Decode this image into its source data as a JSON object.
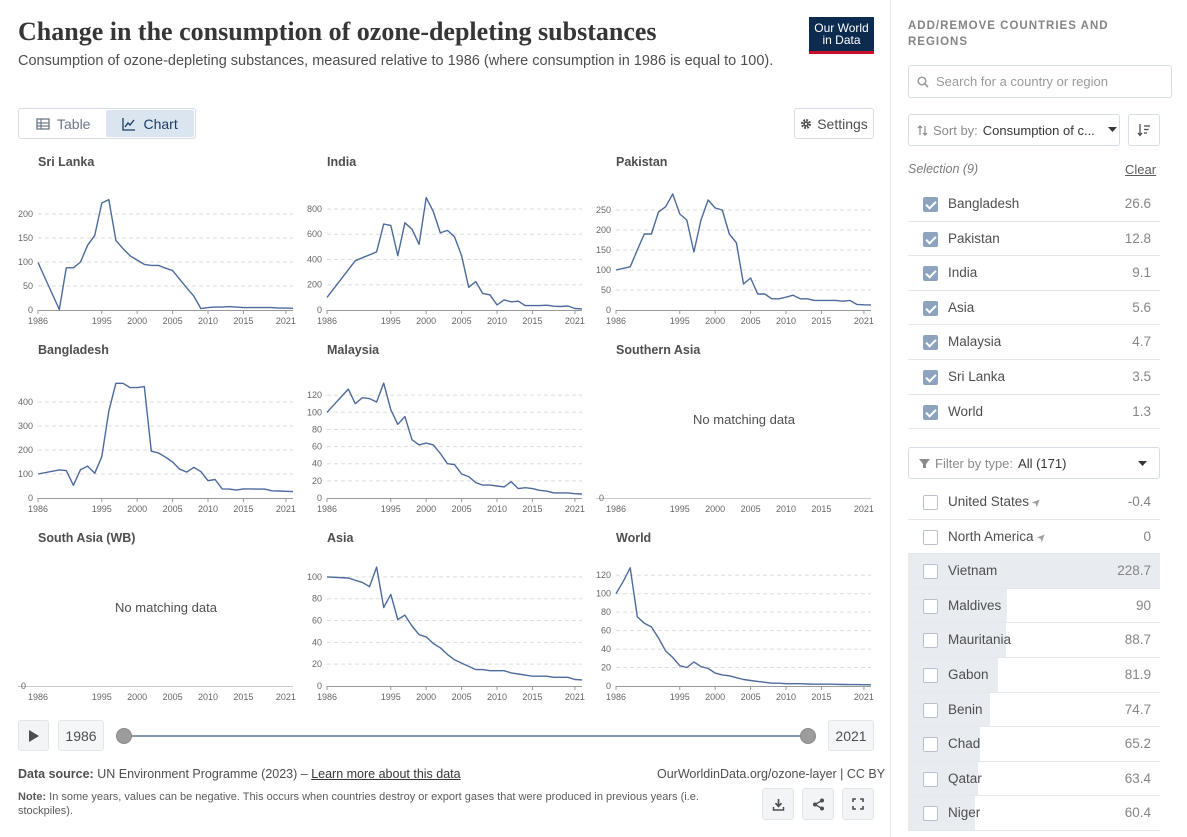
{
  "header": {
    "title": "Change in the consumption of ozone-depleting substances",
    "subtitle": "Consumption of ozone-depleting substances, measured relative to 1986 (where consumption in 1986 is equal to 100).",
    "logo_line1": "Our World",
    "logo_line2": "in Data"
  },
  "tabs": [
    {
      "label": "Table",
      "active": false
    },
    {
      "label": "Chart",
      "active": true
    }
  ],
  "settings_label": "Settings",
  "no_data_label": "No matching data",
  "colors": {
    "line": "#4c6a9c",
    "grid": "#dddddd",
    "axis": "#999999"
  },
  "timeline": {
    "start": "1986",
    "end": "2021"
  },
  "footer": {
    "source_label": "Data source:",
    "source_text": "UN Environment Programme (2023) –",
    "learn_more": "Learn more about this data",
    "url": "OurWorldinData.org/ozone-layer | CC BY",
    "note_label": "Note:",
    "note_text": "In some years, values can be negative. This occurs when countries destroy or export gases that were produced in previous years (i.e. stockpiles)."
  },
  "sidebar": {
    "title": "ADD/REMOVE COUNTRIES AND REGIONS",
    "search_placeholder": "Search for a country or region",
    "sort_label": "Sort by:",
    "sort_value": "Consumption of c...",
    "selection_label": "Selection (9)",
    "clear_label": "Clear",
    "filter_label": "Filter by type:",
    "filter_value": "All (171)",
    "selected": [
      {
        "name": "Bangladesh",
        "value": "26.6"
      },
      {
        "name": "Pakistan",
        "value": "12.8"
      },
      {
        "name": "India",
        "value": "9.1"
      },
      {
        "name": "Asia",
        "value": "5.6"
      },
      {
        "name": "Malaysia",
        "value": "4.7"
      },
      {
        "name": "Sri Lanka",
        "value": "3.5"
      },
      {
        "name": "World",
        "value": "1.3"
      }
    ],
    "others": [
      {
        "name": "United States",
        "value": "-0.4",
        "nav": true,
        "bar": 0
      },
      {
        "name": "North America",
        "value": "0",
        "nav": true,
        "bar": 0
      },
      {
        "name": "Vietnam",
        "value": "228.7",
        "nav": false,
        "bar": 1.0
      },
      {
        "name": "Maldives",
        "value": "90",
        "nav": false,
        "bar": 0.394
      },
      {
        "name": "Mauritania",
        "value": "88.7",
        "nav": false,
        "bar": 0.388
      },
      {
        "name": "Gabon",
        "value": "81.9",
        "nav": false,
        "bar": 0.358
      },
      {
        "name": "Benin",
        "value": "74.7",
        "nav": false,
        "bar": 0.327
      },
      {
        "name": "Chad",
        "value": "65.2",
        "nav": false,
        "bar": 0.285
      },
      {
        "name": "Qatar",
        "value": "63.4",
        "nav": false,
        "bar": 0.277
      },
      {
        "name": "Niger",
        "value": "60.4",
        "nav": false,
        "bar": 0.264
      }
    ]
  },
  "chart_data": {
    "type": "line",
    "layout": "small-multiples",
    "x_ticks": [
      "1986",
      "1995",
      "2000",
      "2005",
      "2010",
      "2015",
      "2021"
    ],
    "xlim": [
      1986,
      2022
    ],
    "panels": [
      {
        "name": "Sri Lanka",
        "ylim": [
          0,
          250
        ],
        "yticks": [
          "0",
          "50",
          "100",
          "150",
          "200"
        ],
        "tick_values": [
          0,
          50,
          100,
          150,
          200
        ],
        "x": [
          1986,
          1989,
          1990,
          1991,
          1992,
          1993,
          1994,
          1995,
          1996,
          1997,
          1998,
          1999,
          2000,
          2001,
          2002,
          2003,
          2004,
          2005,
          2006,
          2007,
          2008,
          2009,
          2010,
          2011,
          2012,
          2013,
          2014,
          2015,
          2016,
          2017,
          2018,
          2019,
          2020,
          2021,
          2022
        ],
        "y": [
          99,
          1,
          88,
          88,
          100,
          135,
          155,
          223,
          230,
          145,
          128,
          113,
          104,
          95,
          93,
          93,
          87,
          82,
          64,
          46,
          29,
          3,
          5,
          6,
          6,
          7,
          6,
          5,
          5,
          5,
          5,
          5,
          4,
          4,
          3.5
        ]
      },
      {
        "name": "India",
        "ylim": [
          0,
          950
        ],
        "yticks": [
          "0",
          "200",
          "400",
          "600",
          "800"
        ],
        "tick_values": [
          0,
          200,
          400,
          600,
          800
        ],
        "x": [
          1986,
          1990,
          1993,
          1994,
          1995,
          1996,
          1997,
          1998,
          1999,
          2000,
          2001,
          2002,
          2003,
          2004,
          2005,
          2006,
          2007,
          2008,
          2009,
          2010,
          2011,
          2012,
          2013,
          2014,
          2015,
          2016,
          2017,
          2018,
          2019,
          2020,
          2021,
          2022
        ],
        "y": [
          100,
          390,
          460,
          680,
          670,
          430,
          690,
          640,
          520,
          890,
          780,
          610,
          630,
          580,
          430,
          180,
          225,
          130,
          120,
          40,
          80,
          65,
          70,
          35,
          35,
          35,
          38,
          30,
          28,
          32,
          12,
          9
        ]
      },
      {
        "name": "Pakistan",
        "ylim": [
          0,
          300
        ],
        "yticks": [
          "0",
          "50",
          "100",
          "150",
          "200",
          "250"
        ],
        "tick_values": [
          0,
          50,
          100,
          150,
          200,
          250
        ],
        "x": [
          1986,
          1988,
          1989,
          1990,
          1991,
          1992,
          1993,
          1994,
          1995,
          1996,
          1997,
          1998,
          1999,
          2000,
          2001,
          2002,
          2003,
          2004,
          2005,
          2006,
          2007,
          2008,
          2009,
          2010,
          2011,
          2012,
          2013,
          2014,
          2015,
          2016,
          2017,
          2018,
          2019,
          2020,
          2021,
          2022
        ],
        "y": [
          100,
          108,
          150,
          190,
          190,
          245,
          258,
          290,
          240,
          225,
          145,
          225,
          275,
          255,
          250,
          190,
          168,
          65,
          80,
          40,
          40,
          28,
          28,
          32,
          37,
          28,
          28,
          24,
          24,
          24,
          24,
          22,
          24,
          14,
          13,
          12.8
        ]
      },
      {
        "name": "Bangladesh",
        "ylim": [
          0,
          500
        ],
        "yticks": [
          "0",
          "100",
          "200",
          "300",
          "400"
        ],
        "tick_values": [
          0,
          100,
          200,
          300,
          400
        ],
        "x": [
          1986,
          1989,
          1990,
          1991,
          1992,
          1993,
          1994,
          1995,
          1996,
          1997,
          1998,
          1999,
          2000,
          2001,
          2002,
          2003,
          2004,
          2005,
          2006,
          2007,
          2008,
          2009,
          2010,
          2011,
          2012,
          2013,
          2014,
          2015,
          2016,
          2017,
          2018,
          2019,
          2020,
          2021,
          2022
        ],
        "y": [
          100,
          117,
          114,
          53,
          118,
          133,
          103,
          172,
          362,
          478,
          478,
          460,
          460,
          464,
          195,
          188,
          170,
          150,
          120,
          108,
          128,
          110,
          72,
          77,
          38,
          37,
          33,
          38,
          38,
          37,
          37,
          30,
          29,
          28,
          26.6
        ]
      },
      {
        "name": "Malaysia",
        "ylim": [
          0,
          140
        ],
        "yticks": [
          "0",
          "20",
          "40",
          "60",
          "80",
          "100",
          "120"
        ],
        "tick_values": [
          0,
          20,
          40,
          60,
          80,
          100,
          120
        ],
        "x": [
          1986,
          1989,
          1990,
          1991,
          1992,
          1993,
          1994,
          1995,
          1996,
          1997,
          1998,
          1999,
          2000,
          2001,
          2002,
          2003,
          2004,
          2005,
          2006,
          2007,
          2008,
          2009,
          2010,
          2011,
          2012,
          2013,
          2014,
          2015,
          2016,
          2017,
          2018,
          2019,
          2020,
          2021,
          2022
        ],
        "y": [
          100,
          127,
          110,
          117,
          116,
          112,
          134,
          103,
          86,
          95,
          68,
          62,
          64,
          62,
          52,
          40,
          39,
          28,
          25,
          18,
          15,
          15,
          14,
          13,
          19,
          11,
          12,
          11,
          9,
          8,
          6,
          6,
          6,
          5,
          4.7
        ]
      },
      {
        "name": "Southern Asia",
        "nodata": true
      },
      {
        "name": "South Asia (WB)",
        "nodata": true
      },
      {
        "name": "Asia",
        "ylim": [
          0,
          110
        ],
        "yticks": [
          "0",
          "20",
          "40",
          "60",
          "80",
          "100"
        ],
        "tick_values": [
          0,
          20,
          40,
          60,
          80,
          100
        ],
        "x": [
          1986,
          1989,
          1991,
          1992,
          1993,
          1994,
          1995,
          1996,
          1997,
          1998,
          1999,
          2000,
          2001,
          2002,
          2003,
          2004,
          2005,
          2006,
          2007,
          2008,
          2009,
          2010,
          2011,
          2012,
          2013,
          2014,
          2015,
          2016,
          2017,
          2018,
          2019,
          2020,
          2021,
          2022
        ],
        "y": [
          100,
          99,
          95,
          91,
          109,
          72,
          84,
          61,
          65,
          55,
          47,
          45,
          39,
          35,
          29,
          24,
          21,
          18,
          15,
          15,
          14,
          14,
          14,
          12,
          11,
          10,
          9,
          9,
          9,
          8,
          8,
          8,
          6,
          5.6
        ]
      },
      {
        "name": "World",
        "ylim": [
          0,
          130
        ],
        "yticks": [
          "0",
          "20",
          "40",
          "60",
          "80",
          "100",
          "120"
        ],
        "tick_values": [
          0,
          20,
          40,
          60,
          80,
          100,
          120
        ],
        "x": [
          1986,
          1987,
          1988,
          1989,
          1990,
          1991,
          1992,
          1993,
          1994,
          1995,
          1996,
          1997,
          1998,
          1999,
          2000,
          2001,
          2002,
          2003,
          2004,
          2005,
          2006,
          2007,
          2008,
          2009,
          2010,
          2011,
          2012,
          2013,
          2014,
          2015,
          2016,
          2017,
          2018,
          2019,
          2020,
          2021,
          2022
        ],
        "y": [
          100,
          113,
          128,
          75,
          68,
          64,
          52,
          38,
          31,
          22,
          20,
          26,
          21,
          19,
          14,
          12,
          11,
          9,
          7,
          6,
          5,
          4,
          3,
          3,
          2.5,
          2.5,
          2.5,
          2.2,
          2,
          2,
          2,
          1.8,
          1.6,
          1.5,
          1.5,
          1.4,
          1.3
        ]
      }
    ]
  }
}
